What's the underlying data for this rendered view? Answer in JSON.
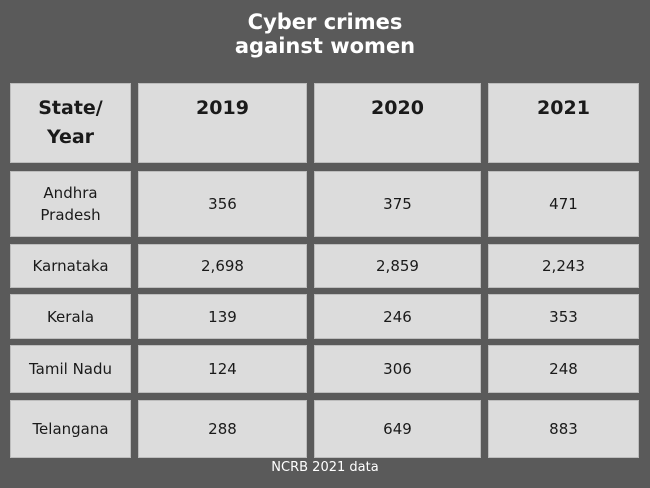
{
  "title_line1": "Cyber crimes",
  "title_line2": "against women",
  "source": "NCRB 2021 data",
  "chart_data": {
    "type": "table",
    "title": "Cyber crimes against women",
    "corner_header": "State/ Year",
    "columns": [
      "2019",
      "2020",
      "2021"
    ],
    "rows": [
      {
        "state": "Andhra Pradesh",
        "values": [
          "356",
          "375",
          "471"
        ]
      },
      {
        "state": "Karnataka",
        "values": [
          "2,698",
          "2,859",
          "2,243"
        ]
      },
      {
        "state": "Kerala",
        "values": [
          "139",
          "246",
          "353"
        ]
      },
      {
        "state": "Tamil Nadu",
        "values": [
          "124",
          "306",
          "248"
        ]
      },
      {
        "state": "Telangana",
        "values": [
          "288",
          "649",
          "883"
        ]
      }
    ]
  }
}
